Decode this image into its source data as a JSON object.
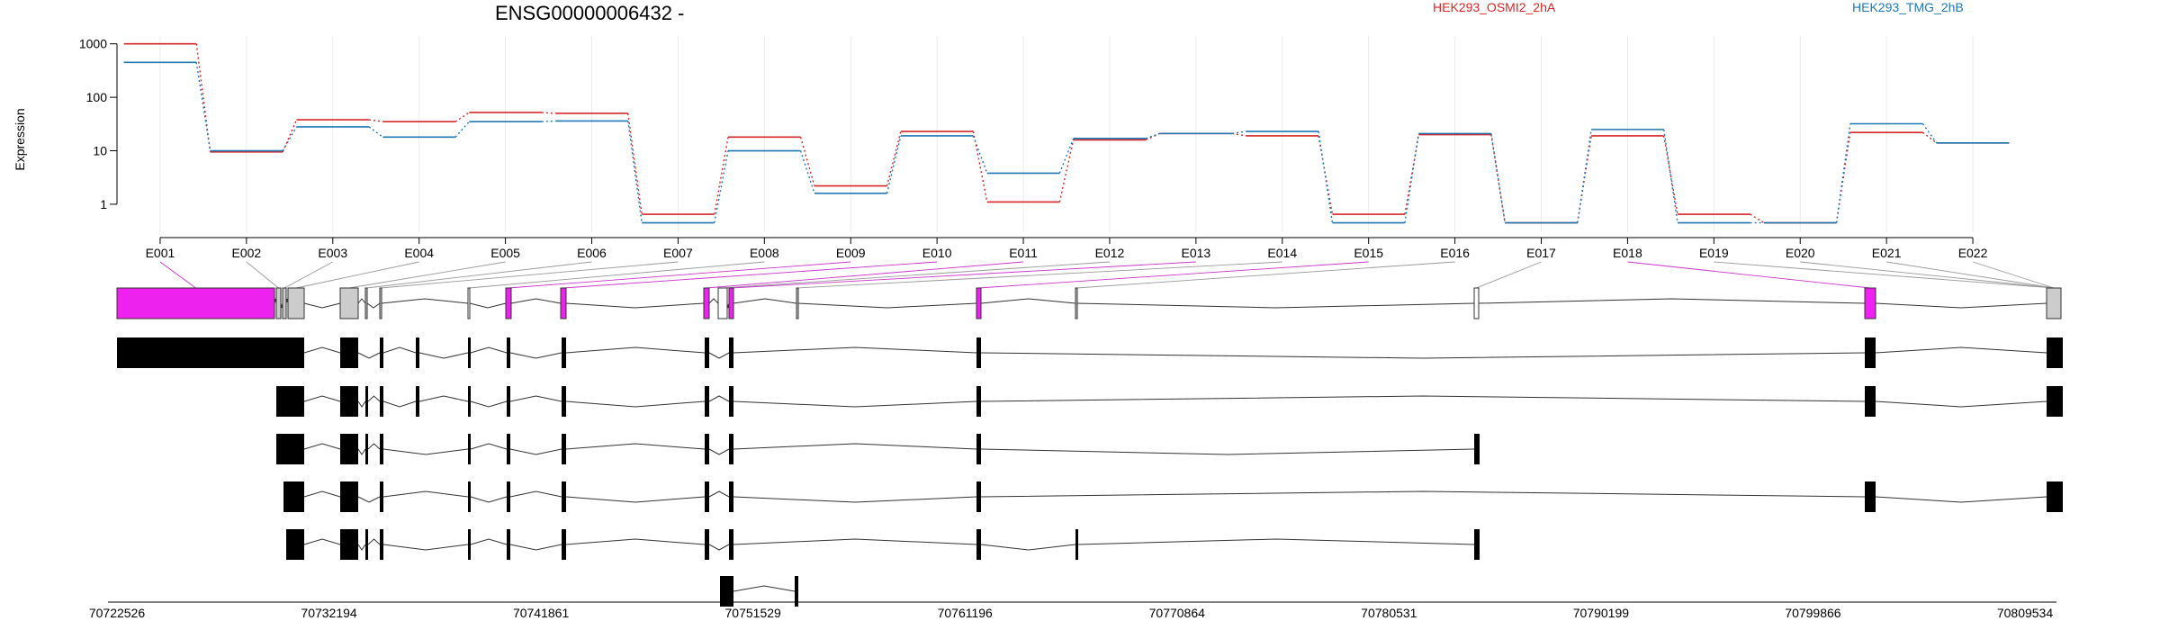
{
  "chart_data": {
    "type": "line",
    "title": "ENSG00000006432 -",
    "ylabel": "Expression",
    "yscale": "log",
    "ylim": [
      0.3,
      1400
    ],
    "yticks": [
      1,
      10,
      100,
      1000
    ],
    "ytick_labels": [
      "1",
      "10",
      "100",
      "1000"
    ],
    "categories": [
      "E001",
      "E002",
      "E003",
      "E004",
      "E005",
      "E006",
      "E007",
      "E008",
      "E009",
      "E010",
      "E011",
      "E012",
      "E013",
      "E014",
      "E015",
      "E016",
      "E017",
      "E018",
      "E019",
      "E020",
      "E021",
      "E022"
    ],
    "series": [
      {
        "name": "HEK293_OSMI2_2hA",
        "color": "#D62728",
        "values": [
          1000,
          9.5,
          38,
          35,
          52,
          50,
          0.65,
          18,
          2.2,
          23,
          1.1,
          16,
          21,
          19,
          0.65,
          20,
          0.45,
          19,
          0.65,
          0.45,
          22,
          14
        ]
      },
      {
        "name": "HEK293_TMG_2hB",
        "color": "#1F77B4",
        "values": [
          450,
          10,
          28,
          18,
          35,
          36,
          0.45,
          10,
          1.6,
          19,
          3.8,
          17,
          21,
          23,
          0.45,
          21,
          0.45,
          25,
          0.45,
          0.45,
          32,
          14
        ]
      }
    ],
    "grid": true,
    "legend_placement": "top-right",
    "genomic_axis_ticks": [
      "70722526",
      "70732194",
      "70741861",
      "70751529",
      "70761196",
      "70770864",
      "70780531",
      "70790199",
      "70799866",
      "70809534"
    ],
    "gene_model": {
      "exon_highlight_color": "#EE22EE",
      "exon_normal_color": "#CCCCCC",
      "transcript_exon_color": "#000000"
    }
  }
}
